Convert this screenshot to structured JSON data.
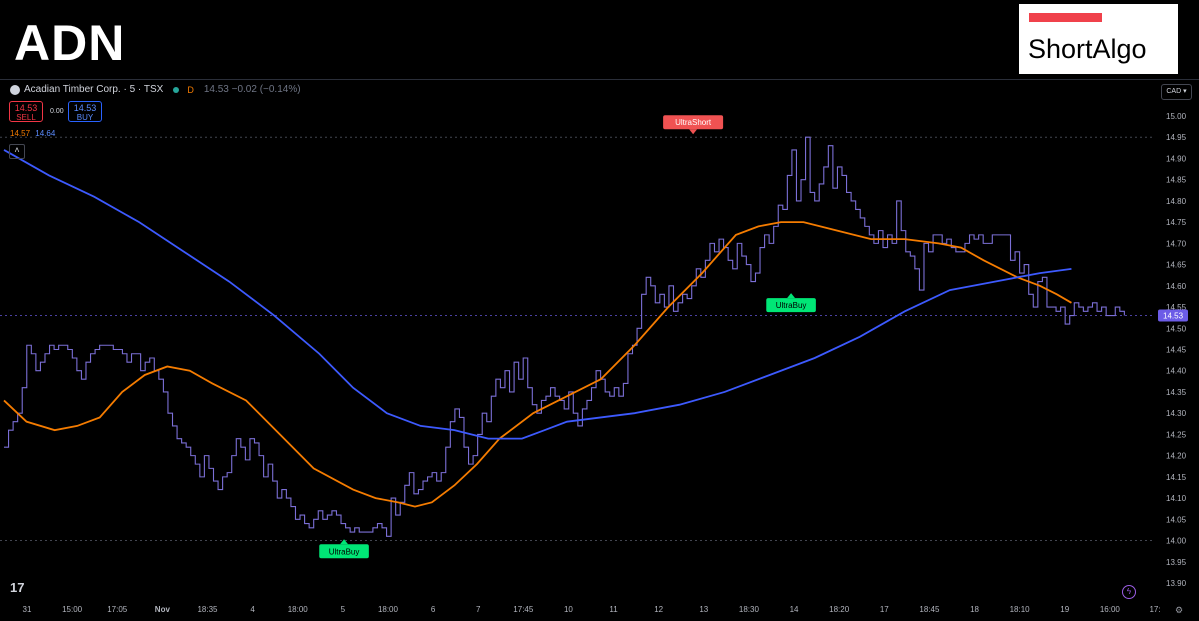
{
  "ticker": "ADN",
  "logo": {
    "text": "ShortAlgo",
    "bar_color": "#f0414b"
  },
  "header": {
    "symbol": "Acadian Timber Corp. · 5 · TSX",
    "flag": "D",
    "quote": "14.53  −0.02 (−0.14%)"
  },
  "trade": {
    "sell_price": "14.53",
    "sell_label": "SELL",
    "spread": "0.00",
    "buy_price": "14.53",
    "buy_label": "BUY"
  },
  "ma_values": {
    "orange": "14.57",
    "blue": "14.64"
  },
  "currency": "CAD",
  "collapse_icon": "chevron-up-icon",
  "colors": {
    "price": "#7b6fd6",
    "ma_fast": "#f57c00",
    "ma_slow": "#3d5afe",
    "buy_tag": "#00e676",
    "short_tag": "#f05252",
    "last_price_tag": "#6c5ce7"
  },
  "chart_data": {
    "type": "line",
    "ylim": [
      13.9,
      15.0
    ],
    "yticks": [
      "15.00",
      "14.95",
      "14.90",
      "14.85",
      "14.80",
      "14.75",
      "14.70",
      "14.65",
      "14.60",
      "14.55",
      "14.50",
      "14.45",
      "14.40",
      "14.35",
      "14.30",
      "14.25",
      "14.20",
      "14.15",
      "14.10",
      "14.05",
      "14.00",
      "13.95",
      "13.90"
    ],
    "xticks": [
      "31",
      "15:00",
      "17:05",
      "Nov",
      "18:35",
      "4",
      "18:00",
      "5",
      "18:00",
      "6",
      "7",
      "17:45",
      "10",
      "11",
      "12",
      "13",
      "18:30",
      "14",
      "18:20",
      "17",
      "18:45",
      "18",
      "18:10",
      "19",
      "16:00",
      "17:"
    ],
    "bold_xticks": [
      "Nov"
    ],
    "last_price": "14.53",
    "series": [
      {
        "role": "price",
        "style": "step",
        "values": [
          14.22,
          14.26,
          14.28,
          14.3,
          14.36,
          14.46,
          14.44,
          14.4,
          14.42,
          14.44,
          14.46,
          14.45,
          14.46,
          14.46,
          14.45,
          14.43,
          14.4,
          14.38,
          14.42,
          14.44,
          14.45,
          14.46,
          14.46,
          14.46,
          14.45,
          14.45,
          14.44,
          14.42,
          14.44,
          14.44,
          14.4,
          14.42,
          14.43,
          14.4,
          14.38,
          14.35,
          14.3,
          14.27,
          14.24,
          14.23,
          14.22,
          14.2,
          14.18,
          14.15,
          14.2,
          14.17,
          14.14,
          14.12,
          14.15,
          14.16,
          14.2,
          14.24,
          14.22,
          14.19,
          14.24,
          14.23,
          14.2,
          14.15,
          14.18,
          14.14,
          14.1,
          14.12,
          14.1,
          14.08,
          14.05,
          14.06,
          14.04,
          14.03,
          14.05,
          14.07,
          14.05,
          14.06,
          14.07,
          14.06,
          14.04,
          14.03,
          14.02,
          14.03,
          14.02,
          14.02,
          14.02,
          14.03,
          14.04,
          14.03,
          14.01,
          14.1,
          14.06,
          14.09,
          14.13,
          14.16,
          14.11,
          14.12,
          14.14,
          14.15,
          14.16,
          14.14,
          14.16,
          14.22,
          14.28,
          14.31,
          14.29,
          14.22,
          14.18,
          14.2,
          14.25,
          14.3,
          14.28,
          14.34,
          14.38,
          14.36,
          14.4,
          14.35,
          14.42,
          14.38,
          14.43,
          14.36,
          14.32,
          14.3,
          14.33,
          14.34,
          14.36,
          14.34,
          14.33,
          14.31,
          14.35,
          14.3,
          14.27,
          14.31,
          14.33,
          14.36,
          14.4,
          14.38,
          14.35,
          14.34,
          14.36,
          14.34,
          14.37,
          14.44,
          14.46,
          14.5,
          14.58,
          14.62,
          14.6,
          14.56,
          14.58,
          14.55,
          14.6,
          14.54,
          14.56,
          14.58,
          14.57,
          14.6,
          14.64,
          14.62,
          14.66,
          14.7,
          14.68,
          14.71,
          14.69,
          14.66,
          14.64,
          14.7,
          14.67,
          14.65,
          14.61,
          14.63,
          14.69,
          14.72,
          14.7,
          14.74,
          14.79,
          14.78,
          14.86,
          14.92,
          14.8,
          14.85,
          14.95,
          14.82,
          14.8,
          14.84,
          14.88,
          14.93,
          14.83,
          14.88,
          14.86,
          14.82,
          14.8,
          14.78,
          14.76,
          14.74,
          14.72,
          14.7,
          14.73,
          14.69,
          14.72,
          14.7,
          14.8,
          14.73,
          14.68,
          14.67,
          14.64,
          14.59,
          14.7,
          14.68,
          14.72,
          14.72,
          14.7,
          14.71,
          14.69,
          14.68,
          14.68,
          14.7,
          14.72,
          14.71,
          14.72,
          14.7,
          14.7,
          14.72,
          14.72,
          14.72,
          14.72,
          14.66,
          14.68,
          14.63,
          14.65,
          14.58,
          14.55,
          14.61,
          14.62,
          14.55,
          14.55,
          14.54,
          14.55,
          14.51,
          14.53,
          14.56,
          14.55,
          14.54,
          14.55,
          14.56,
          14.54,
          14.55,
          14.53,
          14.53,
          14.55,
          14.54,
          14.53
        ]
      },
      {
        "role": "ma_fast",
        "style": "line",
        "points": [
          [
            0,
            14.33
          ],
          [
            0.02,
            14.28
          ],
          [
            0.045,
            14.26
          ],
          [
            0.065,
            14.27
          ],
          [
            0.085,
            14.29
          ],
          [
            0.105,
            14.35
          ],
          [
            0.125,
            14.39
          ],
          [
            0.145,
            14.41
          ],
          [
            0.165,
            14.4
          ],
          [
            0.185,
            14.37
          ],
          [
            0.215,
            14.33
          ],
          [
            0.245,
            14.25
          ],
          [
            0.275,
            14.17
          ],
          [
            0.31,
            14.12
          ],
          [
            0.33,
            14.1
          ],
          [
            0.35,
            14.09
          ],
          [
            0.365,
            14.08
          ],
          [
            0.38,
            14.09
          ],
          [
            0.4,
            14.13
          ],
          [
            0.42,
            14.18
          ],
          [
            0.44,
            14.24
          ],
          [
            0.47,
            14.3
          ],
          [
            0.5,
            14.34
          ],
          [
            0.53,
            14.38
          ],
          [
            0.56,
            14.46
          ],
          [
            0.59,
            14.55
          ],
          [
            0.62,
            14.63
          ],
          [
            0.65,
            14.72
          ],
          [
            0.67,
            14.74
          ],
          [
            0.69,
            14.75
          ],
          [
            0.71,
            14.75
          ],
          [
            0.74,
            14.73
          ],
          [
            0.77,
            14.71
          ],
          [
            0.8,
            14.71
          ],
          [
            0.83,
            14.7
          ],
          [
            0.85,
            14.69
          ],
          [
            0.87,
            14.66
          ],
          [
            0.9,
            14.62
          ],
          [
            0.92,
            14.6
          ],
          [
            0.935,
            14.58
          ],
          [
            0.948,
            14.56
          ]
        ]
      },
      {
        "role": "ma_slow",
        "style": "line",
        "points": [
          [
            0,
            14.92
          ],
          [
            0.04,
            14.86
          ],
          [
            0.08,
            14.81
          ],
          [
            0.12,
            14.75
          ],
          [
            0.16,
            14.68
          ],
          [
            0.2,
            14.61
          ],
          [
            0.24,
            14.53
          ],
          [
            0.28,
            14.44
          ],
          [
            0.31,
            14.36
          ],
          [
            0.34,
            14.3
          ],
          [
            0.37,
            14.27
          ],
          [
            0.4,
            14.26
          ],
          [
            0.43,
            14.24
          ],
          [
            0.46,
            14.24
          ],
          [
            0.48,
            14.26
          ],
          [
            0.5,
            14.28
          ],
          [
            0.53,
            14.29
          ],
          [
            0.56,
            14.3
          ],
          [
            0.6,
            14.32
          ],
          [
            0.64,
            14.35
          ],
          [
            0.68,
            14.39
          ],
          [
            0.72,
            14.43
          ],
          [
            0.76,
            14.48
          ],
          [
            0.8,
            14.54
          ],
          [
            0.84,
            14.59
          ],
          [
            0.88,
            14.61
          ],
          [
            0.92,
            14.63
          ],
          [
            0.948,
            14.64
          ]
        ]
      }
    ],
    "annotations": [
      {
        "label": "UltraBuy",
        "x": 0.302,
        "y": 14.01,
        "type": "buy"
      },
      {
        "label": "UltraShort",
        "x": 0.612,
        "y": 14.95,
        "type": "short"
      },
      {
        "label": "UltraBuy",
        "x": 0.699,
        "y": 14.59,
        "type": "buy"
      }
    ]
  }
}
